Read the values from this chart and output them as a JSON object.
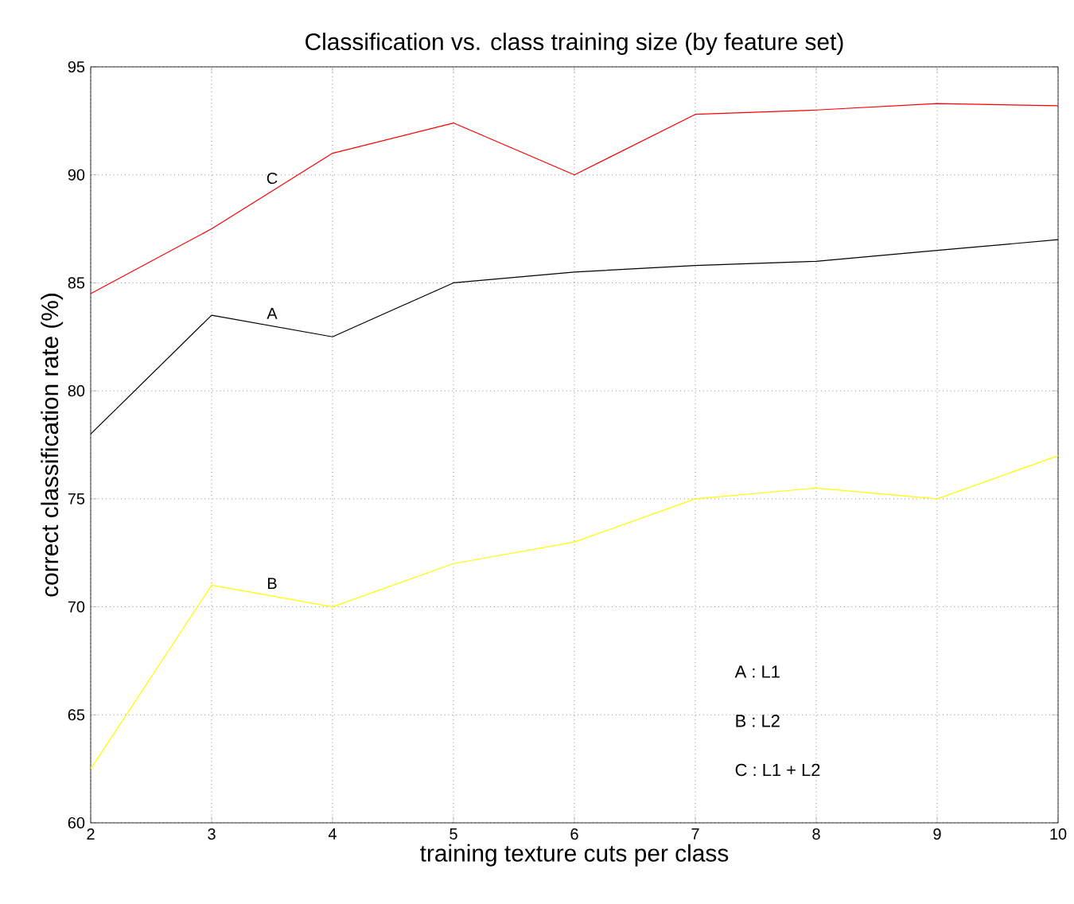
{
  "chart_data": {
    "type": "line",
    "title": "Classification vs. class training size (by feature set)",
    "xlabel": "training texture cuts per class",
    "ylabel": "correct classification rate (%)",
    "x": [
      2,
      3,
      4,
      5,
      6,
      7,
      8,
      9,
      10
    ],
    "series": [
      {
        "name": "A",
        "color": "#000000",
        "values": [
          78,
          83.5,
          82.5,
          85,
          85.5,
          85.8,
          86,
          86.5,
          87
        ]
      },
      {
        "name": "B",
        "color": "#ffff00",
        "values": [
          62.5,
          71,
          70,
          72,
          73,
          75,
          75.5,
          75,
          77
        ]
      },
      {
        "name": "C",
        "color": "#ff0000",
        "values": [
          84.5,
          87.5,
          91,
          92.4,
          90,
          92.8,
          93,
          93.3,
          93.2
        ]
      }
    ],
    "xlim": [
      2,
      10
    ],
    "ylim": [
      60,
      95
    ],
    "xticks": [
      2,
      3,
      4,
      5,
      6,
      7,
      8,
      9,
      10
    ],
    "yticks": [
      60,
      65,
      70,
      75,
      80,
      85,
      90,
      95
    ],
    "grid": true,
    "legend": false,
    "marker": "none",
    "line_style": "solid",
    "annotations": [
      "A : L1",
      "B : L2",
      "C : L1 + L2"
    ]
  }
}
